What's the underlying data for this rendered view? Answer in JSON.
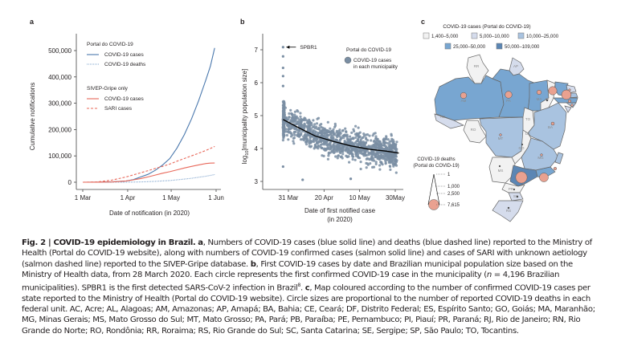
{
  "figure": {
    "panel_labels": {
      "a": "a",
      "b": "b",
      "c": "c"
    }
  },
  "chart_data": [
    {
      "type": "line",
      "panel": "a",
      "title": "",
      "xlabel": "Date of notification (in 2020)",
      "ylabel": "Cumulative notifications",
      "xlim": [
        0,
        92
      ],
      "ylim": [
        0,
        550000
      ],
      "x_unit": "days since 1 Mar 2020",
      "x_ticks": [
        {
          "value": 0,
          "label": "1 Mar"
        },
        {
          "value": 31,
          "label": "1 Apr"
        },
        {
          "value": 61,
          "label": "1 May"
        },
        {
          "value": 92,
          "label": "1 Jun"
        }
      ],
      "y_ticks": [
        {
          "value": 0,
          "label": "0"
        },
        {
          "value": 100000,
          "label": "100,000"
        },
        {
          "value": 200000,
          "label": "200,000"
        },
        {
          "value": 300000,
          "label": "300,000"
        },
        {
          "value": 400000,
          "label": "400,000"
        },
        {
          "value": 500000,
          "label": "500,000"
        }
      ],
      "legend": {
        "placement": "top-left",
        "groups": [
          {
            "title": "Portal do COVID-19",
            "entries": [
              {
                "label": "COVID-19 cases",
                "series": 0
              },
              {
                "label": "COVID-19 deaths",
                "series": 1
              }
            ]
          },
          {
            "title": "SIVEP-Gripe only",
            "entries": [
              {
                "label": "COVID-19 cases",
                "series": 2
              },
              {
                "label": "SARI cases",
                "series": 3
              }
            ]
          }
        ]
      },
      "x": [
        0,
        10,
        20,
        30,
        35,
        40,
        45,
        50,
        55,
        60,
        65,
        70,
        75,
        80,
        85,
        88,
        91
      ],
      "series": [
        {
          "name": "Portal COVID-19 cases",
          "color": "#4a78ad",
          "style": "solid",
          "values": [
            0,
            300,
            1500,
            5000,
            10000,
            20000,
            30000,
            45000,
            65000,
            90000,
            130000,
            180000,
            240000,
            310000,
            390000,
            440000,
            510000
          ]
        },
        {
          "name": "Portal COVID-19 deaths",
          "color": "#7ea3cc",
          "style": "dotted",
          "values": [
            0,
            0,
            0,
            200,
            500,
            1200,
            2000,
            3500,
            5000,
            6500,
            9000,
            12000,
            15000,
            19000,
            23000,
            26000,
            29000
          ]
        },
        {
          "name": "SIVEP COVID-19 cases",
          "color": "#e8685a",
          "style": "solid",
          "values": [
            0,
            200,
            800,
            5000,
            9000,
            14000,
            20000,
            27000,
            34000,
            40000,
            47000,
            54000,
            60000,
            66000,
            71000,
            72500,
            73000
          ]
        },
        {
          "name": "SARI cases",
          "color": "#e8685a",
          "style": "dashed",
          "values": [
            0,
            1000,
            8000,
            20000,
            28000,
            36000,
            44000,
            52000,
            60000,
            69000,
            80000,
            90000,
            100000,
            110000,
            121000,
            128000,
            136000
          ]
        }
      ]
    },
    {
      "type": "scatter",
      "panel": "b",
      "xlabel": "Date of first notified case (in 2020)",
      "xlabel_lines": [
        "Date of first notified case",
        "(in 2020)"
      ],
      "ylabel": "log10[municipality population size]",
      "ylabel_parts": {
        "pre": "log",
        "sub": "10",
        "post": "[municipality population size]"
      },
      "xlim": [
        26,
        92
      ],
      "ylim": [
        2.75,
        7.5
      ],
      "x_unit": "days since 1 Mar 2020",
      "x_ticks": [
        {
          "value": 30,
          "label": "31 Mar"
        },
        {
          "value": 50,
          "label": "20 Apr"
        },
        {
          "value": 70,
          "label": "10 May"
        },
        {
          "value": 90,
          "label": "30May"
        }
      ],
      "y_ticks": [
        {
          "value": 3,
          "label": "3"
        },
        {
          "value": 4,
          "label": "4"
        },
        {
          "value": 5,
          "label": "5"
        },
        {
          "value": 6,
          "label": "6"
        },
        {
          "value": 7,
          "label": "7"
        }
      ],
      "n_points": 4196,
      "point_color": "#7a8ea3",
      "legend": {
        "placement": "top-right",
        "title": "Portal do COVID-19",
        "entry_lines": [
          "COVID-19 cases",
          "in each municipality"
        ]
      },
      "annotation": {
        "label": "SPBR1",
        "x": 27,
        "y": 7.08
      },
      "trend": {
        "color": "#000000",
        "x": [
          27,
          35,
          45,
          55,
          65,
          75,
          85,
          92
        ],
        "y": [
          4.88,
          4.65,
          4.38,
          4.22,
          4.08,
          3.98,
          3.92,
          3.86
        ]
      }
    }
  ],
  "map": {
    "title": "COVID-19 cases (Portal do COVID-19)",
    "legend": [
      {
        "label": "1,400–5,000",
        "color": "#f2f2f2"
      },
      {
        "label": "5,000–10,000",
        "color": "#d5dcec"
      },
      {
        "label": "10,000–25,000",
        "color": "#a9c3e0"
      },
      {
        "label": "25,000–50,000",
        "color": "#78a6d1"
      },
      {
        "label": "50,000–109,000",
        "color": "#5b86b4"
      }
    ],
    "deaths_legend": {
      "title_lines": [
        "COVID-19 deaths",
        "(Portal do COVID-19)"
      ],
      "values": [
        "1",
        "1,000",
        "2,500",
        "7,615"
      ],
      "circle_color": "#e9a190"
    },
    "states": [
      {
        "code": "RR",
        "bin": 0
      },
      {
        "code": "AP",
        "bin": 1
      },
      {
        "code": "AM",
        "bin": 3
      },
      {
        "code": "PA",
        "bin": 3
      },
      {
        "code": "AC",
        "bin": 1
      },
      {
        "code": "RO",
        "bin": 0
      },
      {
        "code": "MT",
        "bin": 2
      },
      {
        "code": "MA",
        "bin": 3
      },
      {
        "code": "PI",
        "bin": 0
      },
      {
        "code": "CE",
        "bin": 3
      },
      {
        "code": "RN",
        "bin": 1
      },
      {
        "code": "PB",
        "bin": 2
      },
      {
        "code": "PE",
        "bin": 3
      },
      {
        "code": "AL",
        "bin": 2
      },
      {
        "code": "SE",
        "bin": 1
      },
      {
        "code": "TO",
        "bin": 0
      },
      {
        "code": "BA",
        "bin": 2
      },
      {
        "code": "DF",
        "bin": 0
      },
      {
        "code": "GO",
        "bin": 0
      },
      {
        "code": "MG",
        "bin": 2
      },
      {
        "code": "ES",
        "bin": 2
      },
      {
        "code": "MS",
        "bin": 0
      },
      {
        "code": "SP",
        "bin": 4
      },
      {
        "code": "RJ",
        "bin": 3
      },
      {
        "code": "PR",
        "bin": 0
      },
      {
        "code": "SC",
        "bin": 1
      },
      {
        "code": "RS",
        "bin": 1
      }
    ]
  },
  "caption": {
    "fig": "Fig. 2 | COVID-19 epidemiology in Brazil.",
    "a_label": "a",
    "a_text": ", Numbers of COVID-19 cases (blue solid line) and deaths (blue dashed line) reported to the Ministry of Health (Portal do COVID-19 website), along with numbers of COVID-19 confirmed cases (salmon solid line) and cases of SARI with unknown aetiology (salmon dashed line) reported to the SIVEP-Gripe database. ",
    "b_label": "b",
    "b_text": ", First COVID-19 cases by date and Brazilian municipal population size based on the Ministry of Health data, from 28 March 2020. Each circle represents the first confirmed COVID-19 case in the municipality (",
    "n_italic": "n",
    "b_text2": " = 4,196 Brazilian municipalities). SPBR1 is the first detected SARS-CoV-2 infection in Brazil",
    "ref": "8",
    "c_label": "c",
    "c_text": ", Map coloured according to the number of confirmed COVID-19 cases per state reported to the Ministry of Health (Portal do COVID-19 website). Circle sizes are proportional to the number of reported COVID-19 deaths in each federal unit. AC, Acre; AL, Alagoas; AM, Amazonas; AP, Amapá; BA, Bahia; CE, Ceará; DF, Distrito Federal; ES, Espírito Santo; GO, Goiás; MA, Maranhão; MG, Minas Gerais; MS, Mato Grosso do Sul; MT, Mato Grosso; PA, Pará; PB, Paraíba; PE, Pernambuco; PI, Piauí; PR, Paraná; RJ, Rio de Janeiro; RN, Rio Grande do Norte; RO, Rondônia; RR, Roraima; RS, Rio Grande do Sul; SC, Santa Catarina; SE, Sergipe; SP, São Paulo; TO, Tocantins."
  }
}
